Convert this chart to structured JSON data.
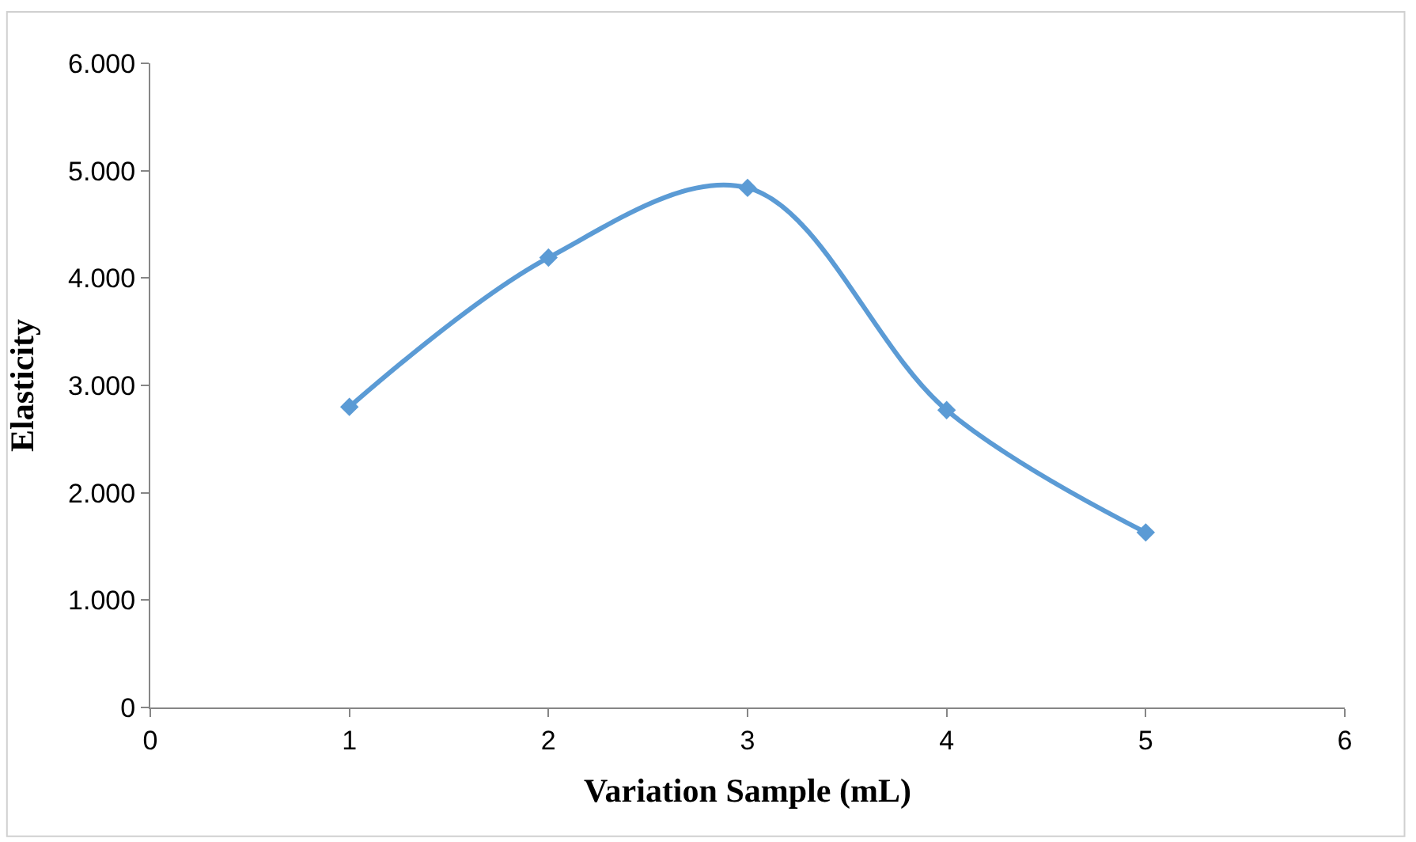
{
  "chart_data": {
    "type": "line",
    "xlabel": "Variation Sample (mL)",
    "ylabel": "Elasticity",
    "x": [
      1,
      2,
      3,
      4,
      5
    ],
    "series": [
      {
        "color": "#5b9bd5",
        "values": [
          2800,
          4190,
          4840,
          2770,
          1630
        ]
      }
    ],
    "xlim": [
      0,
      6
    ],
    "xticks": [
      0,
      1,
      2,
      3,
      4,
      5,
      6
    ],
    "ylim": [
      0,
      6000
    ],
    "yticks": [
      0,
      {
        "value": 1000,
        "label": "1.000"
      },
      {
        "value": 2000,
        "label": "2.000"
      },
      {
        "value": 3000,
        "label": "3.000"
      },
      {
        "value": 4000,
        "label": "4.000"
      },
      {
        "value": 5000,
        "label": "5.000"
      },
      {
        "value": 6000,
        "label": "6.000"
      }
    ],
    "marker": "diamond",
    "line_style": "solid"
  }
}
